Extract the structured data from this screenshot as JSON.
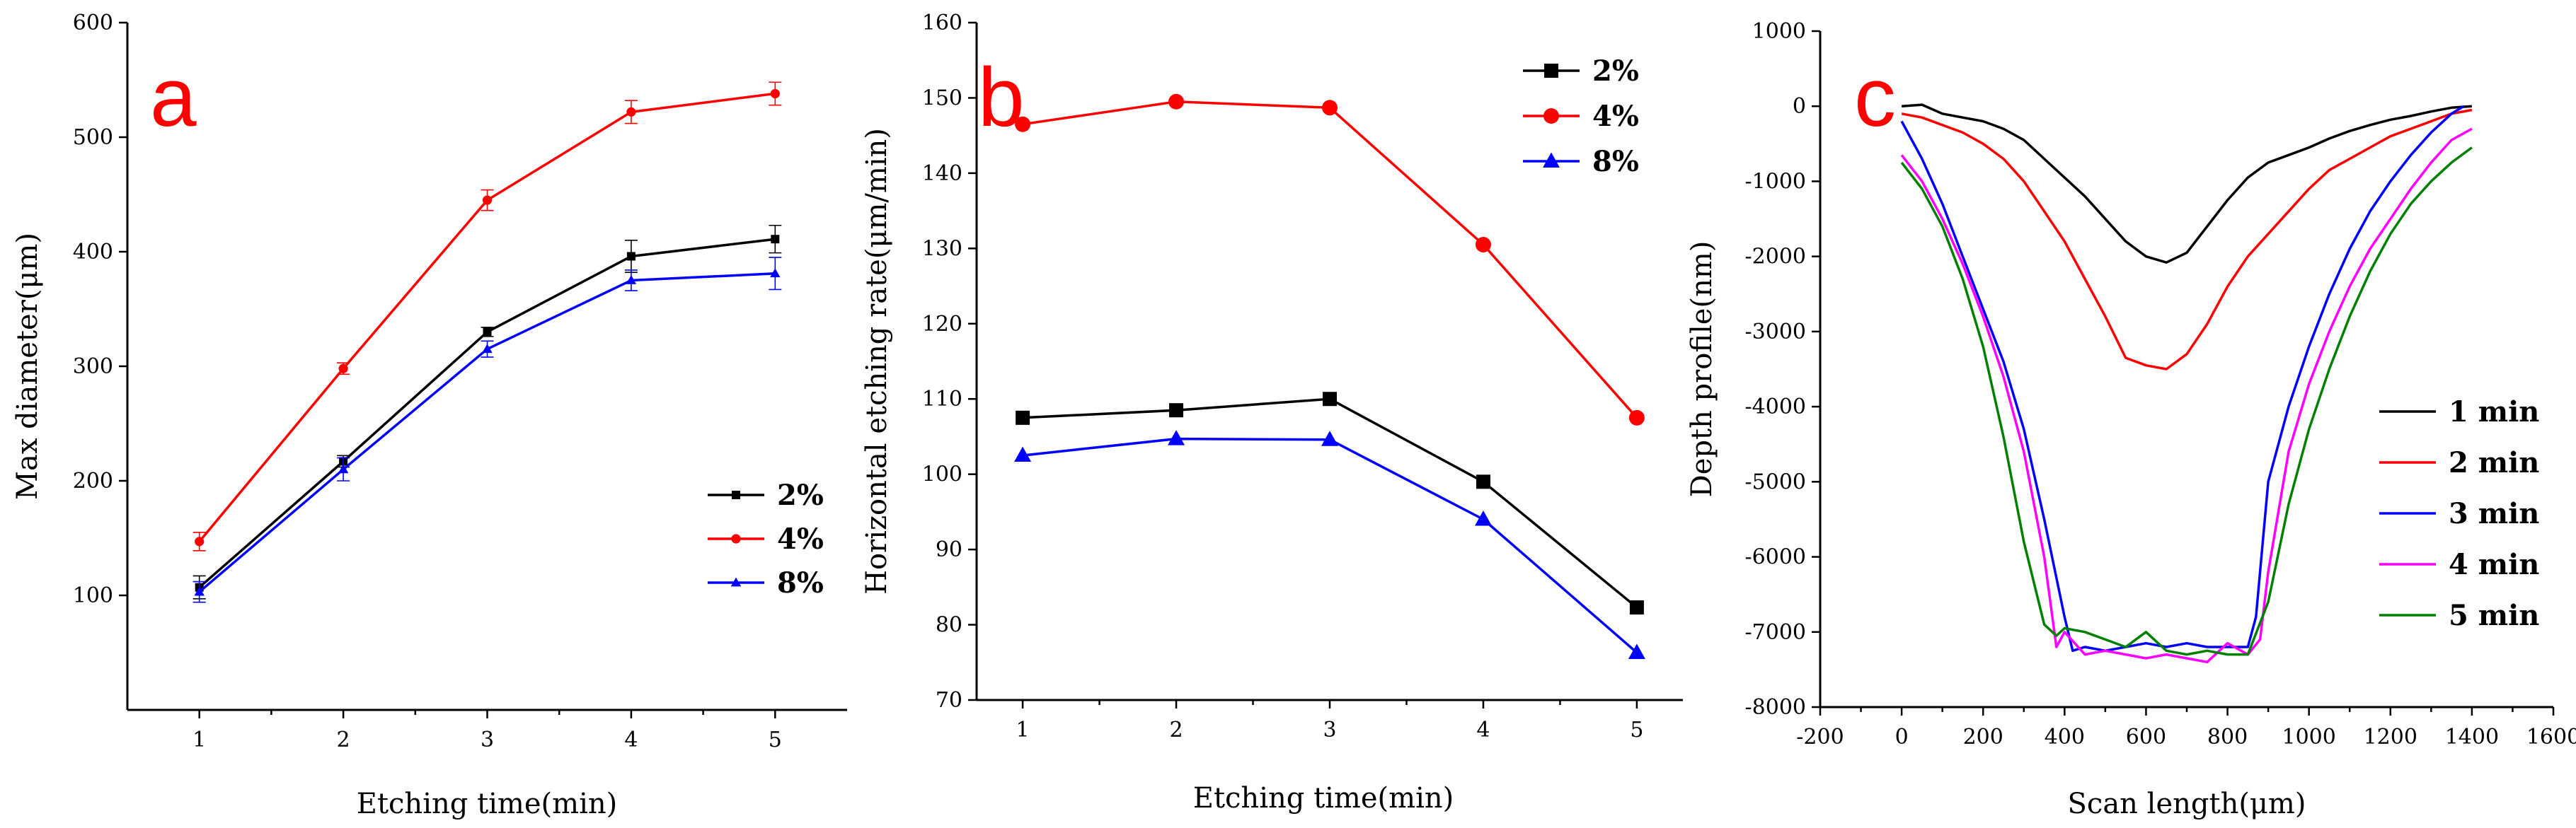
{
  "chart_data": [
    {
      "panel_label": "a",
      "type": "line",
      "xlabel": "Etching time(min)",
      "ylabel": "Max diameter(μm)",
      "xlim": [
        0.5,
        5.5
      ],
      "ylim": [
        0,
        600
      ],
      "xticks": [
        1,
        2,
        3,
        4,
        5
      ],
      "yticks": [
        100,
        200,
        300,
        400,
        500,
        600
      ],
      "x": [
        1,
        2,
        3,
        4,
        5
      ],
      "legend_position": "center-right",
      "series": [
        {
          "name": "2%",
          "color": "#000000",
          "marker": "square",
          "values": [
            107,
            217,
            330,
            396,
            411
          ],
          "errors": [
            10,
            5,
            4,
            14,
            12
          ]
        },
        {
          "name": "4%",
          "color": "#ff0000",
          "marker": "circle",
          "values": [
            147,
            298,
            445,
            522,
            538
          ],
          "errors": [
            8,
            5,
            9,
            10,
            10
          ]
        },
        {
          "name": "8%",
          "color": "#0000ff",
          "marker": "triangle",
          "values": [
            103,
            210,
            315,
            375,
            381
          ],
          "errors": [
            9,
            10,
            7,
            9,
            14
          ]
        }
      ]
    },
    {
      "panel_label": "b",
      "type": "line",
      "xlabel": "Etching time(min)",
      "ylabel": "Horizontal etching rate(μm/min)",
      "xlim": [
        0.7,
        5.3
      ],
      "ylim": [
        70,
        160
      ],
      "xticks": [
        1,
        2,
        3,
        4,
        5
      ],
      "yticks": [
        70,
        80,
        90,
        100,
        110,
        120,
        130,
        140,
        150,
        160
      ],
      "x": [
        1,
        2,
        3,
        4,
        5
      ],
      "legend_position": "top-right",
      "series": [
        {
          "name": "2%",
          "color": "#000000",
          "marker": "square",
          "values": [
            107.5,
            108.5,
            110,
            99,
            82.3
          ]
        },
        {
          "name": "4%",
          "color": "#ff0000",
          "marker": "circle",
          "values": [
            146.5,
            149.5,
            148.7,
            130.5,
            107.5
          ]
        },
        {
          "name": "8%",
          "color": "#0000ff",
          "marker": "triangle",
          "values": [
            102.5,
            104.7,
            104.6,
            94,
            76.3
          ]
        }
      ]
    },
    {
      "panel_label": "c",
      "type": "line",
      "xlabel": "Scan length(μm)",
      "ylabel": "Depth profile(nm)",
      "xlim": [
        -200,
        1600
      ],
      "ylim": [
        -8000,
        1000
      ],
      "xticks": [
        -200,
        0,
        200,
        400,
        600,
        800,
        1000,
        1200,
        1400,
        1600
      ],
      "yticks": [
        1000,
        0,
        -1000,
        -2000,
        -3000,
        -4000,
        -5000,
        -6000,
        -7000,
        -8000
      ],
      "legend_position": "bottom-right",
      "series": [
        {
          "name": "1 min",
          "color": "#000000",
          "x": [
            0,
            50,
            100,
            150,
            200,
            250,
            300,
            350,
            400,
            450,
            500,
            550,
            600,
            650,
            700,
            750,
            800,
            850,
            900,
            950,
            1000,
            1050,
            1100,
            1150,
            1200,
            1250,
            1300,
            1350,
            1400
          ],
          "y": [
            0,
            20,
            -100,
            -150,
            -200,
            -300,
            -450,
            -700,
            -950,
            -1200,
            -1500,
            -1800,
            -2000,
            -2080,
            -1950,
            -1600,
            -1250,
            -950,
            -750,
            -650,
            -550,
            -430,
            -330,
            -250,
            -180,
            -130,
            -70,
            -20,
            0
          ]
        },
        {
          "name": "2 min",
          "color": "#ff0000",
          "x": [
            0,
            50,
            100,
            150,
            200,
            250,
            300,
            350,
            400,
            450,
            500,
            550,
            600,
            650,
            700,
            750,
            800,
            850,
            900,
            950,
            1000,
            1050,
            1100,
            1150,
            1200,
            1250,
            1300,
            1350,
            1400
          ],
          "y": [
            -100,
            -150,
            -250,
            -350,
            -500,
            -700,
            -1000,
            -1400,
            -1800,
            -2300,
            -2800,
            -3350,
            -3450,
            -3500,
            -3300,
            -2900,
            -2400,
            -2000,
            -1700,
            -1400,
            -1100,
            -850,
            -700,
            -550,
            -400,
            -300,
            -200,
            -100,
            -50
          ]
        },
        {
          "name": "3 min",
          "color": "#0000ff",
          "x": [
            0,
            50,
            100,
            150,
            200,
            250,
            300,
            350,
            400,
            420,
            450,
            500,
            550,
            600,
            650,
            700,
            750,
            800,
            850,
            870,
            900,
            950,
            1000,
            1050,
            1100,
            1150,
            1200,
            1250,
            1300,
            1350,
            1380
          ],
          "y": [
            -200,
            -700,
            -1300,
            -2000,
            -2700,
            -3400,
            -4300,
            -5500,
            -6800,
            -7250,
            -7200,
            -7250,
            -7200,
            -7150,
            -7200,
            -7150,
            -7200,
            -7200,
            -7200,
            -6800,
            -5000,
            -4000,
            -3200,
            -2500,
            -1900,
            -1400,
            -1000,
            -650,
            -350,
            -100,
            0
          ]
        },
        {
          "name": "4 min",
          "color": "#ff00ff",
          "x": [
            0,
            50,
            100,
            150,
            200,
            250,
            300,
            350,
            380,
            400,
            450,
            500,
            550,
            600,
            650,
            700,
            750,
            800,
            850,
            880,
            900,
            950,
            1000,
            1050,
            1100,
            1150,
            1200,
            1250,
            1300,
            1350,
            1400
          ],
          "y": [
            -650,
            -1000,
            -1500,
            -2100,
            -2800,
            -3600,
            -4600,
            -6000,
            -7200,
            -7000,
            -7300,
            -7250,
            -7300,
            -7350,
            -7300,
            -7350,
            -7400,
            -7150,
            -7300,
            -7100,
            -6200,
            -4600,
            -3700,
            -3000,
            -2400,
            -1900,
            -1500,
            -1100,
            -750,
            -450,
            -300
          ]
        },
        {
          "name": "5 min",
          "color": "#008000",
          "x": [
            0,
            50,
            100,
            150,
            200,
            250,
            300,
            350,
            380,
            400,
            450,
            500,
            550,
            600,
            650,
            700,
            750,
            800,
            850,
            900,
            950,
            1000,
            1050,
            1100,
            1150,
            1200,
            1250,
            1300,
            1350,
            1400
          ],
          "y": [
            -750,
            -1100,
            -1600,
            -2300,
            -3200,
            -4400,
            -5800,
            -6900,
            -7050,
            -6950,
            -7000,
            -7100,
            -7200,
            -7000,
            -7250,
            -7300,
            -7250,
            -7300,
            -7300,
            -6600,
            -5300,
            -4300,
            -3500,
            -2800,
            -2200,
            -1700,
            -1300,
            -1000,
            -750,
            -550
          ]
        }
      ]
    }
  ]
}
